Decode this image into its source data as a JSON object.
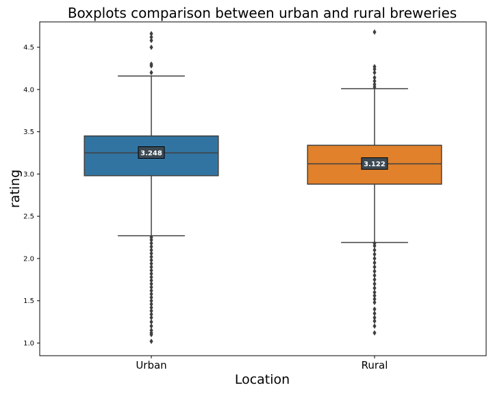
{
  "chart_data": {
    "type": "box",
    "title": "Boxplots comparison between urban and rural breweries",
    "xlabel": "Location",
    "ylabel": "rating",
    "ylim": [
      0.85,
      4.8
    ],
    "yticks": [
      {
        "value": 1.0,
        "label": "1.0"
      },
      {
        "value": 1.5,
        "label": "1.5"
      },
      {
        "value": 2.0,
        "label": "2.0"
      },
      {
        "value": 2.5,
        "label": "2.5"
      },
      {
        "value": 3.0,
        "label": "3.0"
      },
      {
        "value": 3.5,
        "label": "3.5"
      },
      {
        "value": 4.0,
        "label": "4.0"
      },
      {
        "value": 4.5,
        "label": "4.5"
      }
    ],
    "grid": false,
    "categories": [
      "Urban",
      "Rural"
    ],
    "boxes": [
      {
        "category": "Urban",
        "color": "#3274a1",
        "whisker_low": 2.27,
        "q1": 2.98,
        "median": 3.25,
        "q3": 3.45,
        "whisker_high": 4.16,
        "median_label": "3.248",
        "outliers": [
          1.02,
          1.1,
          1.12,
          1.15,
          1.2,
          1.25,
          1.3,
          1.34,
          1.38,
          1.42,
          1.46,
          1.5,
          1.54,
          1.58,
          1.62,
          1.66,
          1.7,
          1.74,
          1.78,
          1.82,
          1.86,
          1.9,
          1.94,
          1.98,
          2.02,
          2.06,
          2.1,
          2.14,
          2.18,
          2.22,
          2.25,
          4.2,
          4.28,
          4.3,
          4.5,
          4.58,
          4.62,
          4.66
        ]
      },
      {
        "category": "Rural",
        "color": "#e1812c",
        "whisker_low": 2.19,
        "q1": 2.88,
        "median": 3.12,
        "q3": 3.34,
        "whisker_high": 4.01,
        "median_label": "3.122",
        "outliers": [
          1.12,
          1.2,
          1.26,
          1.3,
          1.35,
          1.4,
          1.48,
          1.52,
          1.56,
          1.6,
          1.65,
          1.7,
          1.75,
          1.8,
          1.85,
          1.9,
          1.95,
          2.0,
          2.05,
          2.1,
          2.15,
          2.18,
          4.03,
          4.06,
          4.1,
          4.14,
          4.2,
          4.24,
          4.27,
          4.68
        ]
      }
    ]
  }
}
